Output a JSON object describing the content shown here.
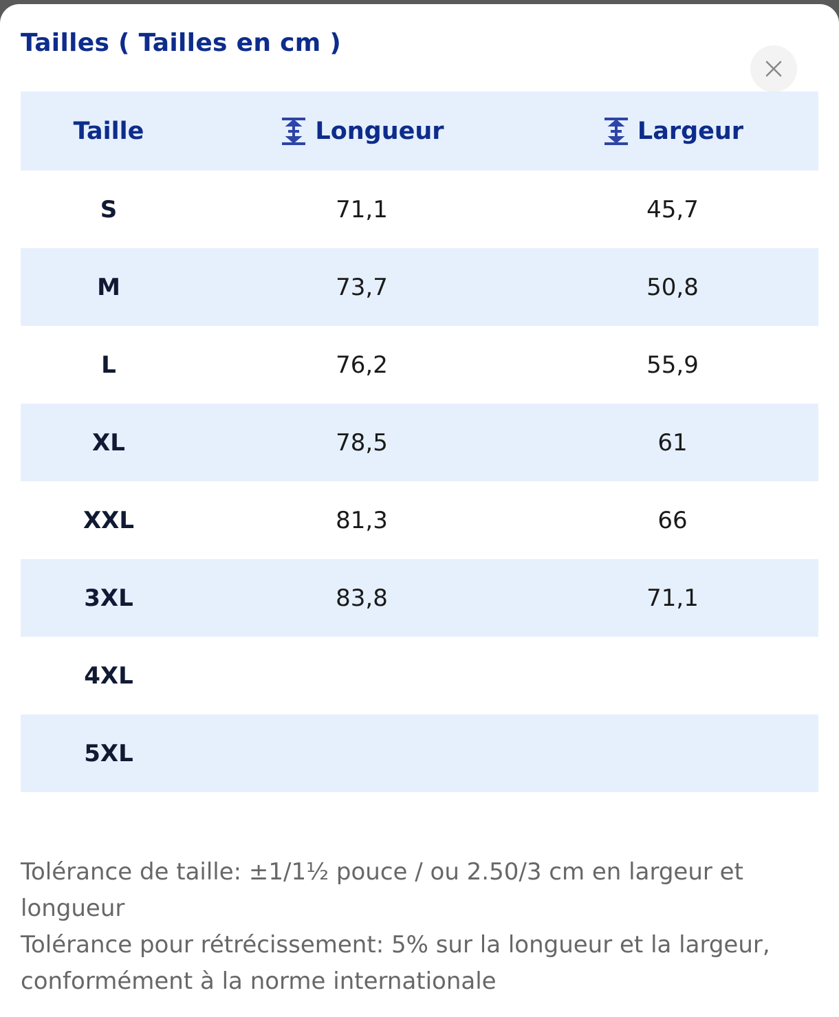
{
  "header": {
    "title": "Tailles ( Tailles en cm )"
  },
  "table": {
    "columns": [
      "Taille",
      "Longueur",
      "Largeur"
    ],
    "rows": [
      [
        "S",
        "71,1",
        "45,7"
      ],
      [
        "M",
        "73,7",
        "50,8"
      ],
      [
        "L",
        "76,2",
        "55,9"
      ],
      [
        "XL",
        "78,5",
        "61"
      ],
      [
        "XXL",
        "81,3",
        "66"
      ],
      [
        "3XL",
        "83,8",
        "71,1"
      ],
      [
        "4XL"
      ],
      [
        "5XL"
      ]
    ]
  },
  "notes": [
    "Tolérance de taille: ±1/1½ pouce / ou 2.50/3 cm en largeur et longueur",
    "Tolérance pour rétrécissement: 5% sur la longueur et la largeur, conformément à la norme internationale"
  ]
}
